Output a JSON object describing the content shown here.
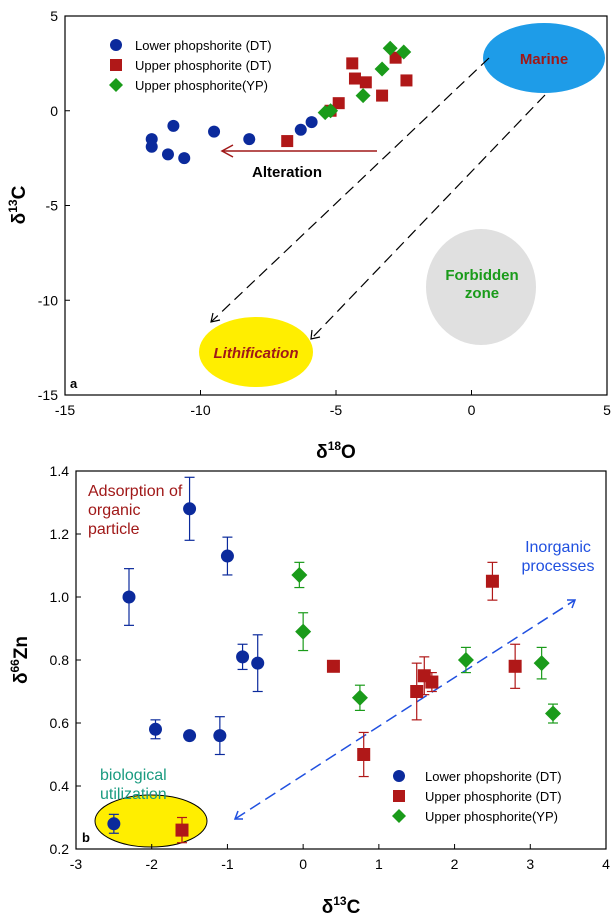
{
  "chart_data": [
    {
      "type": "scatter",
      "panel_label": "a",
      "xlabel": "δ18O",
      "ylabel": "δ13C",
      "xlim": [
        -15,
        5
      ],
      "ylim": [
        -15,
        5
      ],
      "xticks": [
        "-15",
        "-10",
        "-5",
        "0",
        "5"
      ],
      "yticks": [
        "-15",
        "-10",
        "-5",
        "0",
        "5"
      ],
      "legend_position": "top-left",
      "series": [
        {
          "name": "Lower phopshorite (DT)",
          "marker": "circle",
          "color": "#0b2a9c",
          "points": [
            [
              -11.8,
              -1.5
            ],
            [
              -11.8,
              -1.9
            ],
            [
              -11.0,
              -0.8
            ],
            [
              -11.2,
              -2.3
            ],
            [
              -10.6,
              -2.5
            ],
            [
              -9.5,
              -1.1
            ],
            [
              -8.2,
              -1.5
            ],
            [
              -6.3,
              -1.0
            ],
            [
              -5.9,
              -0.6
            ]
          ]
        },
        {
          "name": "Upper phosphorite (DT)",
          "marker": "square",
          "color": "#b01818",
          "points": [
            [
              -6.8,
              -1.6
            ],
            [
              -5.2,
              0.0
            ],
            [
              -4.9,
              0.4
            ],
            [
              -4.4,
              2.5
            ],
            [
              -4.3,
              1.7
            ],
            [
              -3.9,
              1.5
            ],
            [
              -3.3,
              0.8
            ],
            [
              -2.8,
              2.8
            ],
            [
              -2.4,
              1.6
            ]
          ]
        },
        {
          "name": "Upper phosphorite(YP)",
          "marker": "diamond",
          "color": "#1a9b1a",
          "points": [
            [
              -5.4,
              -0.1
            ],
            [
              -5.2,
              0.0
            ],
            [
              -4.0,
              0.8
            ],
            [
              -3.3,
              2.2
            ],
            [
              -3.0,
              3.3
            ],
            [
              -2.5,
              3.1
            ]
          ]
        }
      ],
      "annotations": {
        "marine": "Marine",
        "forbidden_line1": "Forbidden",
        "forbidden_line2": "zone",
        "lithification": "Lithification",
        "alteration": "Alteration"
      }
    },
    {
      "type": "scatter",
      "panel_label": "b",
      "xlabel": "δ13C",
      "ylabel": "δ66Zn",
      "xlim": [
        -3,
        4
      ],
      "ylim": [
        0.2,
        1.4
      ],
      "xticks": [
        "-3",
        "-2",
        "-1",
        "0",
        "1",
        "2",
        "3",
        "4"
      ],
      "yticks": [
        "0.2",
        "0.4",
        "0.6",
        "0.8",
        "1.0",
        "1.2",
        "1.4"
      ],
      "legend_position": "bottom-right",
      "series": [
        {
          "name": "Lower phopshorite (DT)",
          "marker": "circle",
          "color": "#0b2a9c",
          "points": [
            [
              -2.5,
              0.28,
              0.03
            ],
            [
              -2.3,
              1.0,
              0.09
            ],
            [
              -1.95,
              0.58,
              0.03
            ],
            [
              -1.5,
              1.28,
              0.1
            ],
            [
              -1.5,
              0.56,
              0
            ],
            [
              -1.1,
              0.56,
              0.06
            ],
            [
              -1.0,
              1.13,
              0.06
            ],
            [
              -0.8,
              0.81,
              0.04
            ],
            [
              -0.6,
              0.79,
              0.09
            ]
          ]
        },
        {
          "name": "Upper phosphorite (DT)",
          "marker": "square",
          "color": "#b01818",
          "points": [
            [
              -1.6,
              0.26,
              0.04
            ],
            [
              0.4,
              0.78,
              0
            ],
            [
              0.8,
              0.5,
              0.07
            ],
            [
              1.5,
              0.7,
              0.09
            ],
            [
              1.6,
              0.75,
              0.06
            ],
            [
              1.7,
              0.73,
              0.03
            ],
            [
              2.5,
              1.05,
              0.06
            ],
            [
              2.8,
              0.78,
              0.07
            ]
          ]
        },
        {
          "name": "Upper phosphorite(YP)",
          "marker": "diamond",
          "color": "#1a9b1a",
          "points": [
            [
              -0.05,
              1.07,
              0.04
            ],
            [
              0.0,
              0.89,
              0.06
            ],
            [
              0.75,
              0.68,
              0.04
            ],
            [
              2.15,
              0.8,
              0.04
            ],
            [
              3.15,
              0.79,
              0.05
            ],
            [
              3.3,
              0.63,
              0.03
            ]
          ]
        }
      ],
      "annotations": {
        "adsorption_line1": "Adsorption of",
        "adsorption_line2": "organic",
        "adsorption_line3": "particle",
        "inorganic_line1": "Inorganic",
        "inorganic_line2": "processes",
        "biological_line1": "biological",
        "biological_line2": "utilization"
      }
    }
  ]
}
